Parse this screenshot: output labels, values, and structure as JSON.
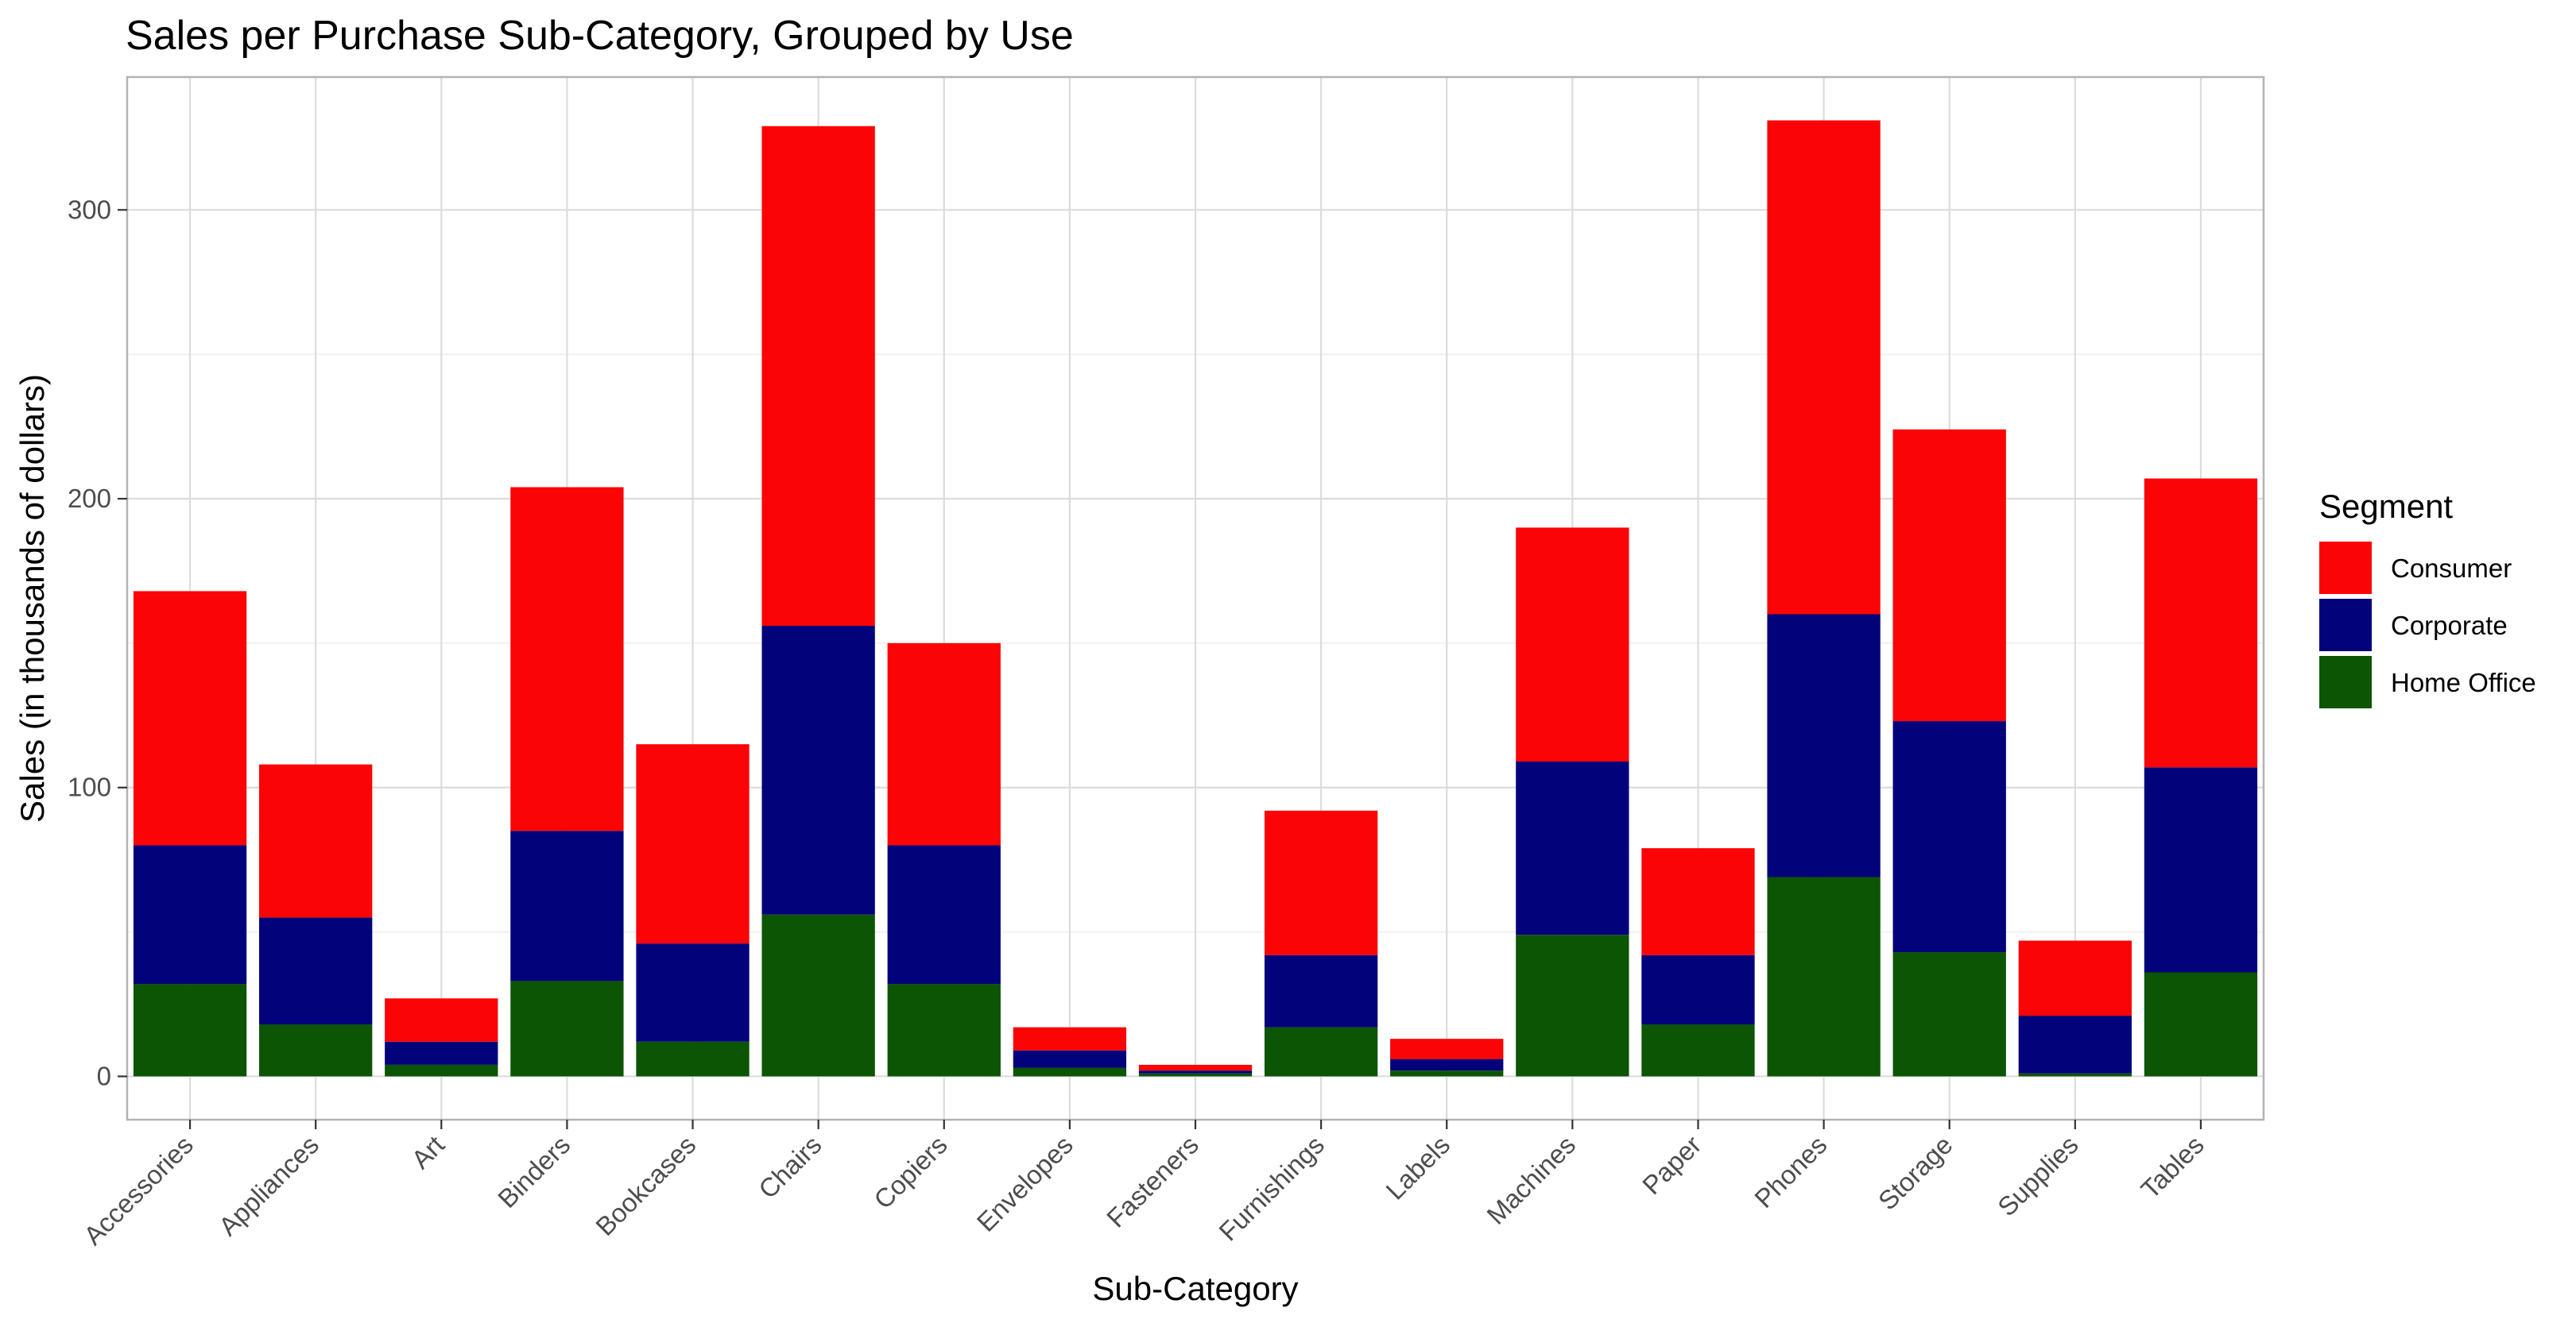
{
  "chart_data": {
    "type": "bar",
    "stacked": true,
    "title": "Sales per Purchase Sub-Category, Grouped by Use",
    "xlabel": "Sub-Category",
    "ylabel": "Sales (in thousands of dollars)",
    "ylim": [
      -15,
      346
    ],
    "yticks": [
      "0",
      "100",
      "200",
      "300"
    ],
    "grid": true,
    "legend": {
      "title": "Segment",
      "position": "right"
    },
    "categories": [
      "Accessories",
      "Appliances",
      "Art",
      "Binders",
      "Bookcases",
      "Chairs",
      "Copiers",
      "Envelopes",
      "Fasteners",
      "Furnishings",
      "Labels",
      "Machines",
      "Paper",
      "Phones",
      "Storage",
      "Supplies",
      "Tables"
    ],
    "series": [
      {
        "name": "Home Office",
        "color": "#0b5504",
        "values": [
          32,
          18,
          4,
          33,
          12,
          56,
          32,
          3,
          1,
          17,
          2,
          49,
          18,
          69,
          43,
          1,
          36
        ]
      },
      {
        "name": "Corporate",
        "color": "#02027a",
        "values": [
          48,
          37,
          8,
          52,
          34,
          100,
          48,
          6,
          1,
          25,
          4,
          60,
          24,
          91,
          80,
          20,
          71
        ]
      },
      {
        "name": "Consumer",
        "color": "#fb0406",
        "values": [
          88,
          53,
          15,
          119,
          69,
          173,
          70,
          8,
          2,
          50,
          7,
          81,
          37,
          171,
          101,
          26,
          100
        ]
      }
    ]
  }
}
